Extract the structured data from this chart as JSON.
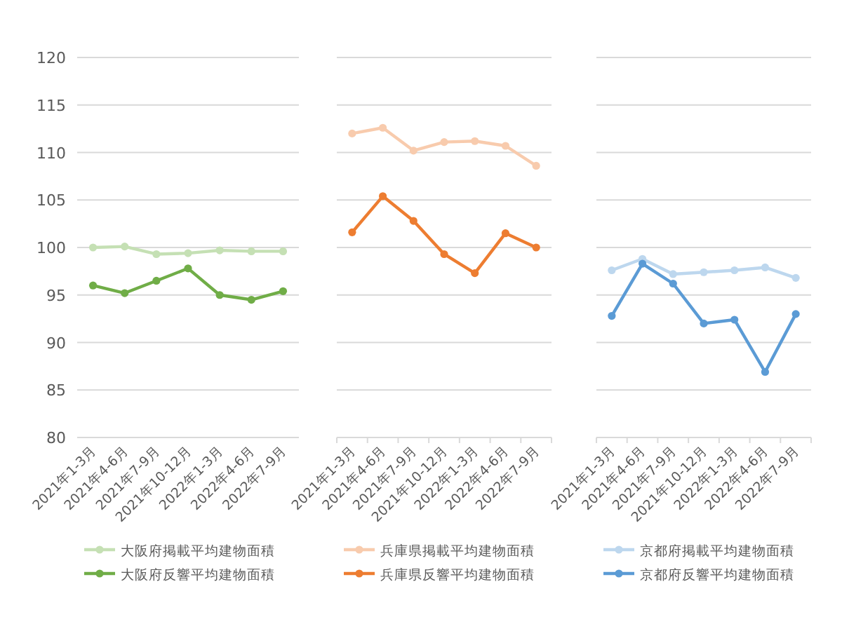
{
  "chart_data": [
    {
      "type": "line",
      "categories": [
        "2021年1-3月",
        "2021年4-6月",
        "2021年7-9月",
        "2021年10-12月",
        "2022年1-3月",
        "2022年4-6月",
        "2022年7-9月"
      ],
      "ylim": [
        80,
        120
      ],
      "yticks": [
        80,
        85,
        90,
        95,
        100,
        105,
        110,
        115,
        120
      ],
      "grid": "y",
      "legend": "bottom",
      "marker": "circle",
      "series": [
        {
          "name": "大阪府掲載平均建物面積",
          "color": "#c5e0b4",
          "values": [
            100.0,
            100.1,
            99.3,
            99.4,
            99.7,
            99.6,
            99.6
          ]
        },
        {
          "name": "大阪府反響平均建物面積",
          "color": "#70ad47",
          "values": [
            96.0,
            95.2,
            96.5,
            97.8,
            95.0,
            94.5,
            95.4
          ]
        }
      ]
    },
    {
      "type": "line",
      "categories": [
        "2021年1-3月",
        "2021年4-6月",
        "2021年7-9月",
        "2021年10-12月",
        "2022年1-3月",
        "2022年4-6月",
        "2022年7-9月"
      ],
      "ylim": [
        80,
        120
      ],
      "yticks": [
        80,
        85,
        90,
        95,
        100,
        105,
        110,
        115,
        120
      ],
      "tick_labels": "x",
      "grid": "y",
      "legend": "bottom",
      "marker": "circle",
      "series": [
        {
          "name": "兵庫県掲載平均建物面積",
          "color": "#f8cbad",
          "values": [
            112.0,
            112.6,
            110.2,
            111.1,
            111.2,
            110.7,
            108.6
          ]
        },
        {
          "name": "兵庫県反響平均建物面積",
          "color": "#ed7d31",
          "values": [
            101.6,
            105.4,
            102.8,
            99.3,
            97.3,
            101.5,
            100.0
          ]
        }
      ]
    },
    {
      "type": "line",
      "categories": [
        "2021年1-3月",
        "2021年4-6月",
        "2021年7-9月",
        "2021年10-12月",
        "2022年1-3月",
        "2022年4-6月",
        "2022年7-9月"
      ],
      "ylim": [
        80,
        120
      ],
      "yticks": [
        80,
        85,
        90,
        95,
        100,
        105,
        110,
        115,
        120
      ],
      "tick_labels": "x",
      "grid": "y",
      "legend": "bottom",
      "marker": "circle",
      "series": [
        {
          "name": "京都府掲載平均建物面積",
          "color": "#bdd7ee",
          "values": [
            97.6,
            98.8,
            97.2,
            97.4,
            97.6,
            97.9,
            96.8
          ]
        },
        {
          "name": "京都府反響平均建物面積",
          "color": "#5b9bd5",
          "values": [
            92.8,
            98.3,
            96.2,
            92.0,
            92.4,
            86.9,
            93.0
          ]
        }
      ]
    }
  ]
}
